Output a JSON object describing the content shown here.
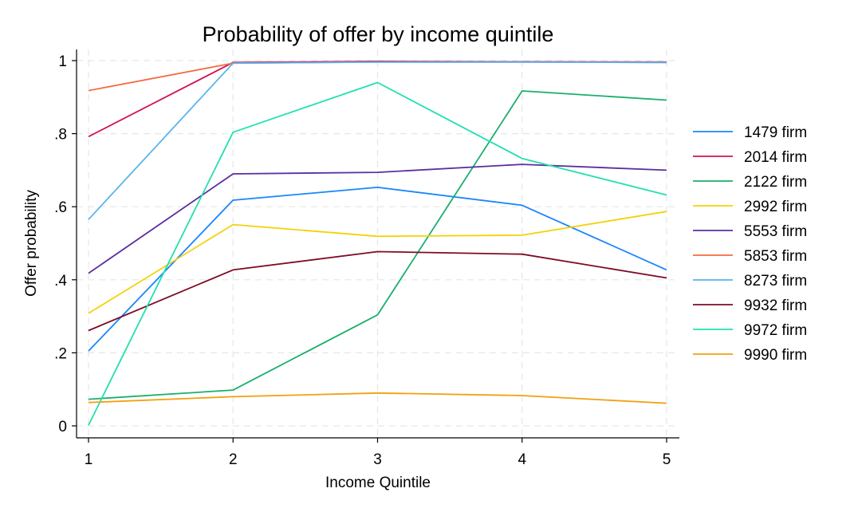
{
  "chart_data": {
    "type": "line",
    "title": "Probability of offer by income quintile",
    "xlabel": "Income Quintile",
    "ylabel": "Offer probability",
    "x": [
      1,
      2,
      3,
      4,
      5
    ],
    "xticks": [
      "1",
      "2",
      "3",
      "4",
      "5"
    ],
    "yticks": [
      {
        "value": 0,
        "label": "0"
      },
      {
        "value": 0.2,
        "label": ".2"
      },
      {
        "value": 0.4,
        "label": ".4"
      },
      {
        "value": 0.6,
        "label": ".6"
      },
      {
        "value": 0.8,
        "label": ".8"
      },
      {
        "value": 1,
        "label": "1"
      }
    ],
    "xlim": [
      1,
      5
    ],
    "ylim": [
      0,
      1
    ],
    "grid": true,
    "legend_position": "right",
    "series": [
      {
        "name": "1479 firm",
        "color": "#1a85ff",
        "values": [
          0.205,
          0.618,
          0.653,
          0.604,
          0.427
        ]
      },
      {
        "name": "2014 firm",
        "color": "#d41159",
        "values": [
          0.792,
          0.995,
          0.998,
          0.997,
          0.996
        ]
      },
      {
        "name": "2122 firm",
        "color": "#1aaf6c",
        "values": [
          0.073,
          0.098,
          0.304,
          0.917,
          0.892
        ]
      },
      {
        "name": "2992 firm",
        "color": "#f5d10a",
        "values": [
          0.308,
          0.551,
          0.519,
          0.522,
          0.587
        ]
      },
      {
        "name": "5553 firm",
        "color": "#5b2f9f",
        "values": [
          0.418,
          0.69,
          0.694,
          0.716,
          0.7
        ]
      },
      {
        "name": "5853 firm",
        "color": "#f46c41",
        "values": [
          0.918,
          0.993,
          0.996,
          0.996,
          0.995
        ]
      },
      {
        "name": "8273 firm",
        "color": "#5ab4eb",
        "values": [
          0.565,
          0.993,
          0.996,
          0.996,
          0.995
        ]
      },
      {
        "name": "9932 firm",
        "color": "#7d0c24",
        "values": [
          0.261,
          0.427,
          0.477,
          0.47,
          0.405
        ]
      },
      {
        "name": "9972 firm",
        "color": "#21e0b0",
        "values": [
          0.002,
          0.804,
          0.94,
          0.732,
          0.632
        ]
      },
      {
        "name": "9990 firm",
        "color": "#f1a10e",
        "values": [
          0.064,
          0.08,
          0.09,
          0.083,
          0.062
        ]
      }
    ]
  }
}
